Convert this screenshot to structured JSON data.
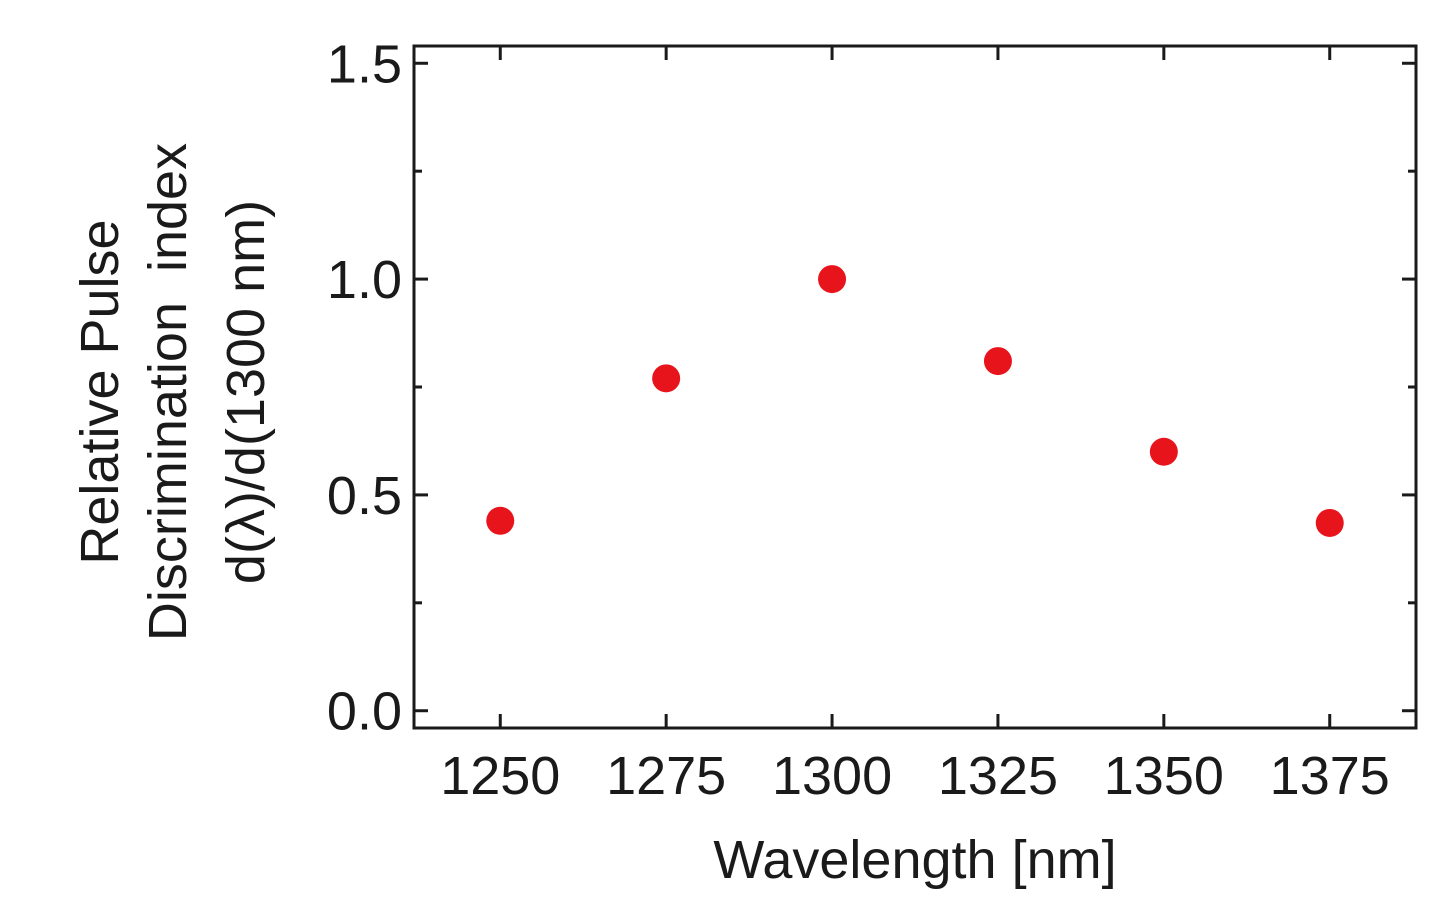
{
  "chart_data": {
    "type": "scatter",
    "title": "",
    "xlabel": "Wavelength [nm]",
    "ylabel_lines": [
      "Relative Pulse",
      "Discrimination  index",
      "d(λ)/d(1300 nm)"
    ],
    "x": [
      1250,
      1275,
      1300,
      1325,
      1350,
      1375
    ],
    "y": [
      0.44,
      0.77,
      1.0,
      0.81,
      0.6,
      0.435
    ],
    "xlim": [
      1237,
      1388
    ],
    "ylim": [
      -0.04,
      1.54
    ],
    "xticks": [
      1250,
      1275,
      1300,
      1325,
      1350,
      1375
    ],
    "xtick_labels": [
      "1250",
      "1275",
      "1300",
      "1325",
      "1350",
      "1375"
    ],
    "yticks": [
      0.0,
      0.5,
      1.0,
      1.5
    ],
    "ytick_labels": [
      "0.0",
      "0.5",
      "1.0",
      "1.5"
    ],
    "y_minor_ticks": [
      0.25,
      0.75,
      1.25
    ],
    "grid": false,
    "legend": "none",
    "marker_color": "#e8141c",
    "axis_color": "#1a1a1a"
  }
}
